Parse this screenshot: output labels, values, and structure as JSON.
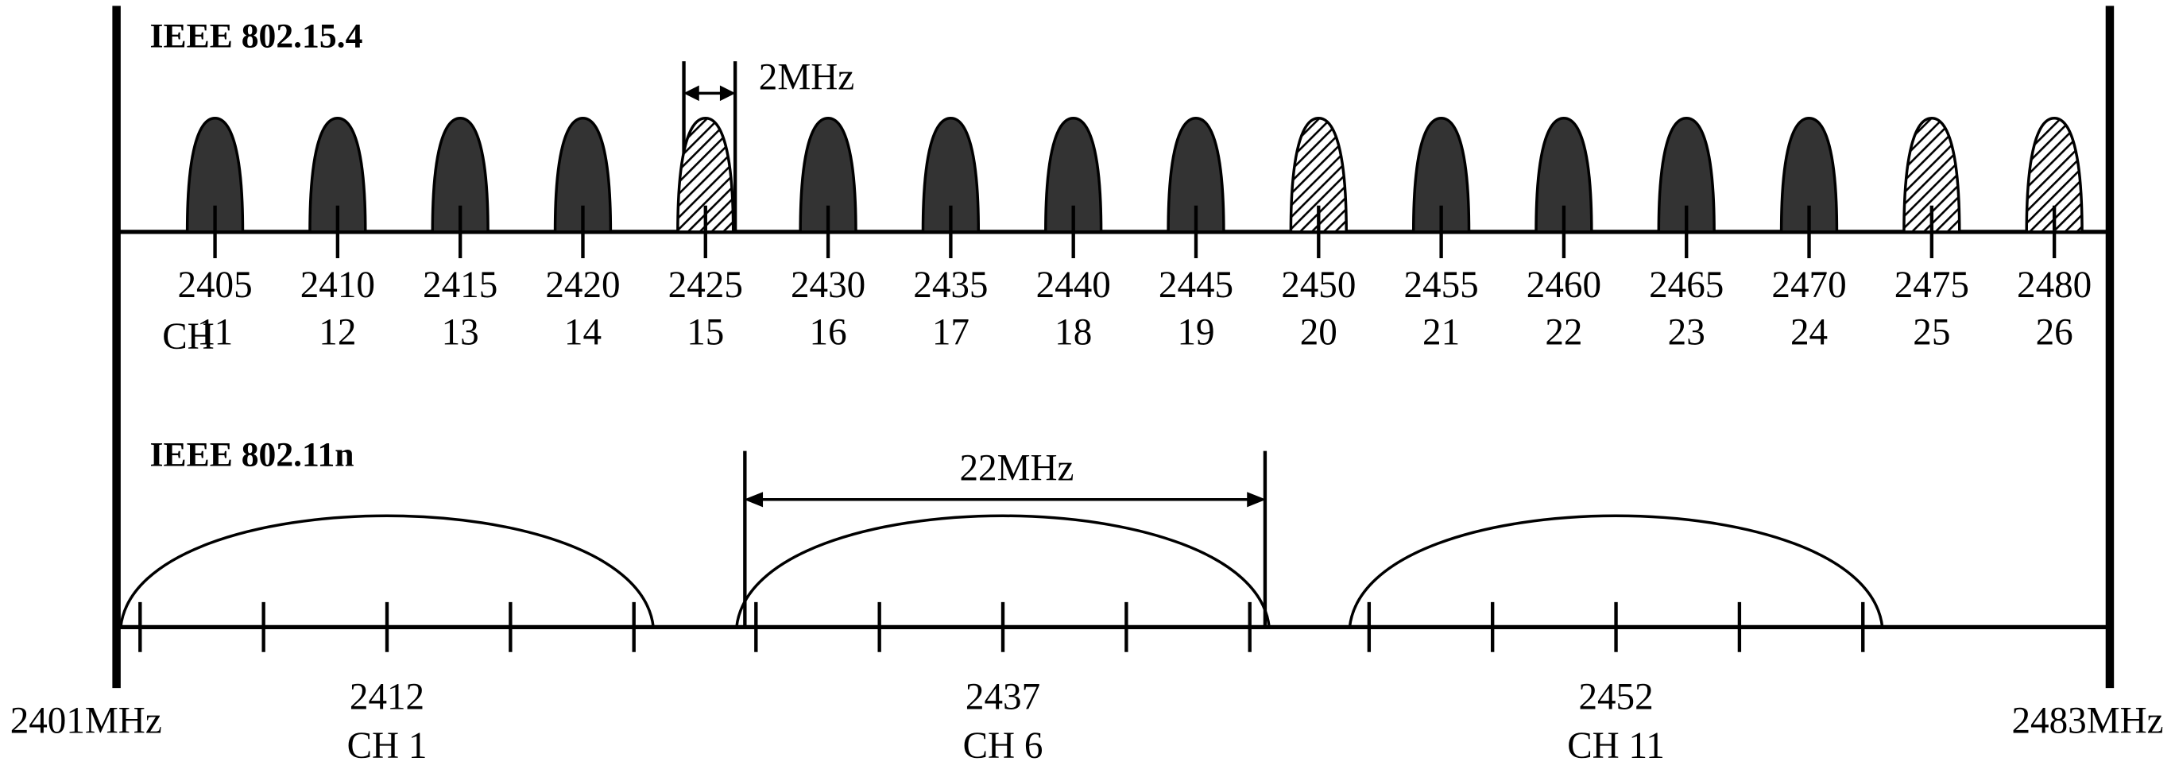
{
  "zigbee": {
    "title": "IEEE 802.15.4",
    "ch_label": "CH",
    "bandwidth_label": "2MHz",
    "channels": [
      {
        "freq": "2405",
        "ch": "11",
        "style": "solid"
      },
      {
        "freq": "2410",
        "ch": "12",
        "style": "solid"
      },
      {
        "freq": "2415",
        "ch": "13",
        "style": "solid"
      },
      {
        "freq": "2420",
        "ch": "14",
        "style": "solid"
      },
      {
        "freq": "2425",
        "ch": "15",
        "style": "hatched"
      },
      {
        "freq": "2430",
        "ch": "16",
        "style": "solid"
      },
      {
        "freq": "2435",
        "ch": "17",
        "style": "solid"
      },
      {
        "freq": "2440",
        "ch": "18",
        "style": "solid"
      },
      {
        "freq": "2445",
        "ch": "19",
        "style": "solid"
      },
      {
        "freq": "2450",
        "ch": "20",
        "style": "hatched"
      },
      {
        "freq": "2455",
        "ch": "21",
        "style": "solid"
      },
      {
        "freq": "2460",
        "ch": "22",
        "style": "solid"
      },
      {
        "freq": "2465",
        "ch": "23",
        "style": "solid"
      },
      {
        "freq": "2470",
        "ch": "24",
        "style": "solid"
      },
      {
        "freq": "2475",
        "ch": "25",
        "style": "hatched"
      },
      {
        "freq": "2480",
        "ch": "26",
        "style": "hatched"
      }
    ]
  },
  "wifi": {
    "title": "IEEE 802.11n",
    "bandwidth_label": "22MHz",
    "channels": [
      {
        "freq": "2412",
        "ch": "CH 1"
      },
      {
        "freq": "2437",
        "ch": "CH 6"
      },
      {
        "freq": "2452",
        "ch": "CH 11"
      }
    ]
  },
  "band": {
    "start": "2401MHz",
    "end": "2483MHz"
  }
}
